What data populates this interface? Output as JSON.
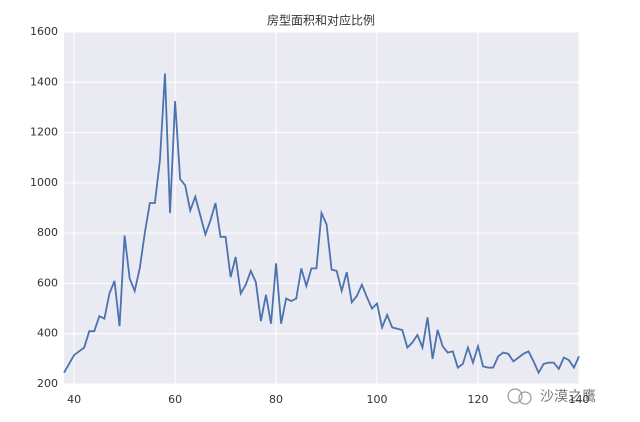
{
  "chart_data": {
    "type": "line",
    "title": "房型面积和对应比例",
    "x": [
      38,
      39,
      40,
      41,
      42,
      43,
      44,
      45,
      46,
      47,
      48,
      49,
      50,
      51,
      52,
      53,
      54,
      55,
      56,
      57,
      58,
      59,
      60,
      61,
      62,
      63,
      64,
      65,
      66,
      67,
      68,
      69,
      70,
      71,
      72,
      73,
      74,
      75,
      76,
      77,
      78,
      79,
      80,
      81,
      82,
      83,
      84,
      85,
      86,
      87,
      88,
      89,
      90,
      91,
      92,
      93,
      94,
      95,
      96,
      97,
      98,
      99,
      100,
      101,
      102,
      103,
      104,
      105,
      106,
      107,
      108,
      109,
      110,
      111,
      112,
      113,
      114,
      115,
      116,
      117,
      118,
      119,
      120,
      121,
      122,
      123,
      124,
      125,
      126,
      127,
      128,
      129,
      130,
      131,
      132,
      133,
      134,
      135,
      136,
      137,
      138,
      139,
      140
    ],
    "series": [
      {
        "color": "#4c72b0",
        "values": [
          245,
          280,
          315,
          330,
          345,
          410,
          410,
          470,
          460,
          560,
          610,
          430,
          790,
          620,
          570,
          660,
          800,
          920,
          920,
          1090,
          1435,
          880,
          1325,
          1015,
          990,
          890,
          945,
          870,
          795,
          850,
          920,
          785,
          785,
          625,
          705,
          560,
          595,
          650,
          605,
          450,
          555,
          440,
          680,
          440,
          540,
          530,
          540,
          660,
          590,
          660,
          660,
          880,
          835,
          655,
          650,
          570,
          645,
          525,
          550,
          595,
          545,
          500,
          520,
          425,
          475,
          425,
          420,
          415,
          345,
          365,
          395,
          345,
          465,
          300,
          415,
          350,
          325,
          330,
          265,
          280,
          345,
          285,
          350,
          270,
          265,
          265,
          310,
          325,
          320,
          290,
          305,
          320,
          330,
          290,
          245,
          280,
          285,
          285,
          260,
          305,
          295,
          265,
          310
        ]
      }
    ],
    "xlim": [
      38,
      140
    ],
    "xticks": [
      40,
      60,
      80,
      100,
      120,
      140
    ],
    "ylim": [
      200,
      1600
    ],
    "yticks": [
      200,
      400,
      600,
      800,
      1000,
      1200,
      1400,
      1600
    ],
    "grid": true,
    "watermark": "沙漠之鹰"
  }
}
